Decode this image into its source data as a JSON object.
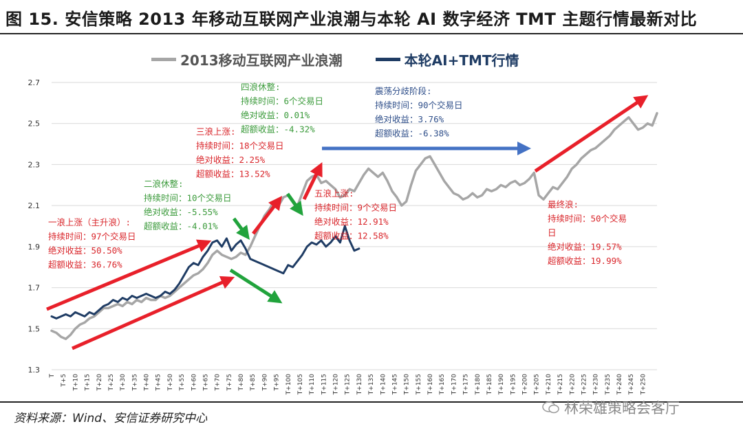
{
  "title": "图 15. 安信策略 2013 年移动互联网产业浪潮与本轮 AI 数字经济 TMT 主题行情最新对比",
  "source": "资料来源：Wind、安信证券研究中心",
  "watermark": "林荣雄策略会客厅",
  "colors": {
    "gray": "#a6a6a6",
    "navy": "#1f3c64",
    "red_arrow": "#e8202a",
    "green_arrow": "#21a33c",
    "blue_arrow": "#4472c4",
    "red_text": "#d9262b",
    "green_text": "#3a9a3a",
    "blue_text": "#2f4f8a"
  },
  "chart_data": {
    "type": "line",
    "title": "",
    "xlabel": "",
    "ylabel": "",
    "ylim": [
      1.3,
      2.7
    ],
    "yticks": [
      "1.3",
      "1.5",
      "1.7",
      "1.9",
      "2.1",
      "2.3",
      "2.5",
      "2.7"
    ],
    "xticks": [
      "T",
      "T+5",
      "T+10",
      "T+15",
      "T+20",
      "T+25",
      "T+30",
      "T+35",
      "T+40",
      "T+45",
      "T+50",
      "T+55",
      "T+60",
      "T+65",
      "T+70",
      "T+75",
      "T+80",
      "T+85",
      "T+90",
      "T+95",
      "T+100",
      "T+105",
      "T+110",
      "T+115",
      "T+120",
      "T+125",
      "T+130",
      "T+135",
      "T+140",
      "T+145",
      "T+150",
      "T+155",
      "T+160",
      "T+165",
      "T+170",
      "T+175",
      "T+180",
      "T+185",
      "T+190",
      "T+195",
      "T+200",
      "T+205",
      "T+210",
      "T+215",
      "T+220",
      "T+225",
      "T+230",
      "T+235",
      "T+240",
      "T+245",
      "T+250"
    ],
    "grid": true,
    "series": [
      {
        "name": "2013移动互联网产业浪潮",
        "color": "#a6a6a6",
        "x": [
          0,
          2,
          4,
          6,
          8,
          10,
          12,
          14,
          16,
          18,
          20,
          22,
          24,
          26,
          28,
          30,
          32,
          34,
          36,
          38,
          40,
          42,
          44,
          46,
          48,
          50,
          52,
          54,
          56,
          58,
          60,
          62,
          64,
          66,
          68,
          70,
          72,
          74,
          76,
          78,
          80,
          82,
          84,
          86,
          88,
          90,
          92,
          94,
          96,
          98,
          100,
          102,
          104,
          106,
          108,
          110,
          112,
          114,
          116,
          118,
          120,
          122,
          124,
          126,
          128,
          130,
          132,
          134,
          136,
          138,
          140,
          142,
          144,
          146,
          148,
          150,
          152,
          154,
          156,
          158,
          160,
          162,
          164,
          166,
          168,
          170,
          172,
          174,
          176,
          178,
          180,
          182,
          184,
          186,
          188,
          190,
          192,
          194,
          196,
          198,
          200,
          202,
          204,
          206,
          208,
          210,
          212,
          214,
          216,
          218,
          220,
          222,
          224,
          226,
          228,
          230,
          232,
          234,
          236,
          238,
          240,
          242,
          244,
          246,
          248,
          250,
          252,
          254,
          256
        ],
        "values": [
          1.49,
          1.48,
          1.46,
          1.45,
          1.47,
          1.5,
          1.52,
          1.53,
          1.55,
          1.56,
          1.58,
          1.6,
          1.6,
          1.61,
          1.62,
          1.61,
          1.63,
          1.62,
          1.64,
          1.63,
          1.65,
          1.64,
          1.64,
          1.66,
          1.65,
          1.66,
          1.68,
          1.7,
          1.72,
          1.74,
          1.76,
          1.77,
          1.79,
          1.82,
          1.86,
          1.88,
          1.86,
          1.85,
          1.84,
          1.85,
          1.87,
          1.86,
          1.9,
          1.95,
          2.0,
          2.05,
          2.08,
          2.12,
          2.1,
          2.14,
          2.15,
          2.12,
          2.1,
          2.16,
          2.22,
          2.24,
          2.25,
          2.21,
          2.22,
          2.2,
          2.18,
          2.14,
          2.15,
          2.18,
          2.17,
          2.21,
          2.25,
          2.28,
          2.26,
          2.24,
          2.26,
          2.22,
          2.17,
          2.14,
          2.1,
          2.12,
          2.2,
          2.27,
          2.3,
          2.33,
          2.34,
          2.3,
          2.26,
          2.22,
          2.19,
          2.16,
          2.15,
          2.13,
          2.14,
          2.16,
          2.14,
          2.15,
          2.18,
          2.17,
          2.18,
          2.2,
          2.19,
          2.21,
          2.22,
          2.2,
          2.21,
          2.23,
          2.26,
          2.15,
          2.13,
          2.16,
          2.19,
          2.18,
          2.21,
          2.24,
          2.28,
          2.3,
          2.33,
          2.35,
          2.37,
          2.38,
          2.4,
          2.42,
          2.44,
          2.47,
          2.49,
          2.51,
          2.53,
          2.5,
          2.47,
          2.48,
          2.5,
          2.49,
          2.55
        ]
      },
      {
        "name": "本轮AI+TMT行情",
        "color": "#1f3c64",
        "x": [
          0,
          2,
          4,
          6,
          8,
          10,
          12,
          14,
          16,
          18,
          20,
          22,
          24,
          26,
          28,
          30,
          32,
          34,
          36,
          38,
          40,
          42,
          44,
          46,
          48,
          50,
          52,
          54,
          56,
          58,
          60,
          62,
          64,
          66,
          68,
          70,
          72,
          74,
          76,
          78,
          80,
          82,
          84,
          86,
          88,
          90,
          92,
          94,
          96,
          98,
          100,
          102,
          104,
          106,
          108,
          110,
          112,
          114,
          116,
          118,
          120,
          122,
          124,
          126,
          128,
          130
        ],
        "values": [
          1.56,
          1.55,
          1.56,
          1.57,
          1.56,
          1.58,
          1.57,
          1.56,
          1.58,
          1.57,
          1.59,
          1.61,
          1.62,
          1.64,
          1.63,
          1.65,
          1.64,
          1.66,
          1.65,
          1.66,
          1.67,
          1.66,
          1.65,
          1.66,
          1.68,
          1.67,
          1.69,
          1.72,
          1.76,
          1.8,
          1.82,
          1.81,
          1.85,
          1.88,
          1.92,
          1.93,
          1.9,
          1.94,
          1.88,
          1.91,
          1.93,
          1.89,
          1.84,
          1.83,
          1.82,
          1.81,
          1.8,
          1.79,
          1.78,
          1.77,
          1.81,
          1.8,
          1.83,
          1.86,
          1.9,
          1.92,
          1.91,
          1.93,
          1.9,
          1.92,
          1.95,
          1.92,
          2.0,
          1.93,
          1.88,
          1.89
        ]
      }
    ],
    "annotations": [
      {
        "id": "wave1",
        "color": "red",
        "lines": [
          "一浪上涨（主升浪）:",
          "持续时间：97个交易日",
          "绝对收益：50.50%",
          "超额收益：36.76%"
        ]
      },
      {
        "id": "wave2",
        "color": "green",
        "lines": [
          "二浪休整:",
          "持续时间：10个交易日",
          "绝对收益：-5.55%",
          "超额收益：-4.01%"
        ]
      },
      {
        "id": "wave3",
        "color": "red",
        "lines": [
          "三浪上涨:",
          "持续时间：18个交易日",
          "绝对收益：2.25%",
          "超额收益：13.52%"
        ]
      },
      {
        "id": "wave4",
        "color": "green",
        "lines": [
          "四浪休整:",
          "持续时间：6个交易日",
          "绝对收益：0.01%",
          "超额收益：-4.32%"
        ]
      },
      {
        "id": "wave5",
        "color": "red",
        "lines": [
          "五浪上涨:",
          "持续时间：9个交易日",
          "绝对收益：12.91%",
          "超额收益：12.58%"
        ]
      },
      {
        "id": "shake",
        "color": "blue",
        "lines": [
          "震荡分歧阶段:",
          "持续时间：90个交易日",
          "绝对收益：3.76%",
          "超额收益：-6.38%"
        ]
      },
      {
        "id": "final",
        "color": "red",
        "lines": [
          "最终浪:",
          "持续时间：50个交易",
          "日",
          "绝对收益：19.57%",
          "超额收益：19.99%"
        ]
      }
    ]
  }
}
